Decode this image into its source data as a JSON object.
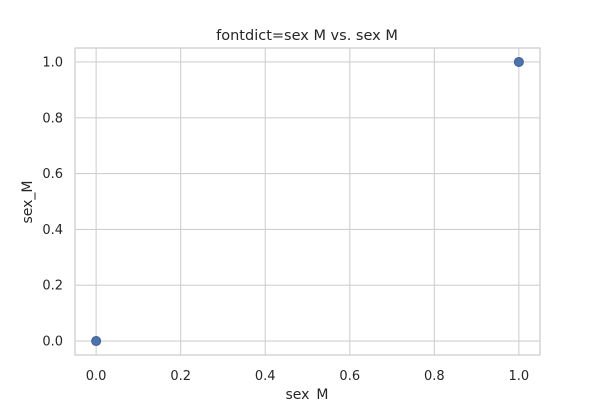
{
  "chart_data": {
    "type": "scatter",
    "title": "fontdict=sex M vs. sex M",
    "xlabel": "sex_M",
    "ylabel": "sex_M",
    "xlim": [
      -0.05,
      1.05
    ],
    "ylim": [
      -0.05,
      1.05
    ],
    "xticks": [
      0.0,
      0.2,
      0.4,
      0.6,
      0.8,
      1.0
    ],
    "yticks": [
      0.0,
      0.2,
      0.4,
      0.6,
      0.8,
      1.0
    ],
    "xtick_labels": [
      "0.0",
      "0.2",
      "0.4",
      "0.6",
      "0.8",
      "1.0"
    ],
    "ytick_labels": [
      "0.0",
      "0.2",
      "0.4",
      "0.6",
      "0.8",
      "1.0"
    ],
    "grid": true,
    "marker_color": "#4c72b0",
    "marker_edge_color": "#3d5f94",
    "points": [
      {
        "x": 0.0,
        "y": 0.0
      },
      {
        "x": 1.0,
        "y": 1.0
      }
    ]
  }
}
